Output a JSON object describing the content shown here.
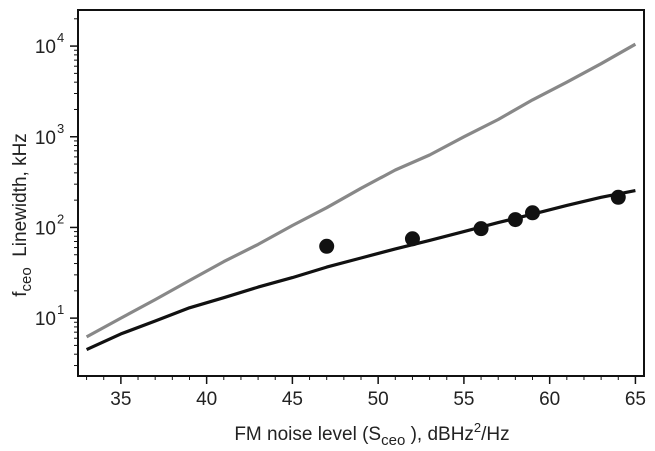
{
  "chart_data": {
    "type": "line",
    "title": "",
    "xlabel_parts": {
      "pre": "FM noise level (S",
      "sub": "ceo",
      "mid": " ), dBHz",
      "sup": "2",
      "post": "/Hz"
    },
    "ylabel_parts": {
      "base": "f",
      "sub": "ceo",
      "rest": "  Linewidth, kHz"
    },
    "xlim": [
      32.5,
      65.5
    ],
    "ylim": [
      2.3,
      25000
    ],
    "yscale": "log",
    "grid": false,
    "legend": "none",
    "x_ticks": [
      35,
      40,
      45,
      50,
      55,
      60,
      65
    ],
    "x_tick_labels": [
      "35",
      "40",
      "45",
      "50",
      "55",
      "60",
      "65"
    ],
    "y_ticks": [
      10,
      100,
      1000,
      10000
    ],
    "y_tick_labels": [
      {
        "base": "10",
        "exp": "1"
      },
      {
        "base": "10",
        "exp": "2"
      },
      {
        "base": "10",
        "exp": "3"
      },
      {
        "base": "10",
        "exp": "4"
      }
    ],
    "series": [
      {
        "kind": "line",
        "color": "#888888",
        "x": [
          33,
          35,
          37,
          39,
          41,
          43,
          45,
          47,
          49,
          51,
          53,
          55,
          57,
          59,
          61,
          63,
          65
        ],
        "y": [
          6.2,
          10,
          16,
          26,
          42,
          65,
          105,
          165,
          270,
          430,
          630,
          1000,
          1550,
          2550,
          4000,
          6400,
          10500
        ]
      },
      {
        "kind": "line",
        "color": "#111111",
        "x": [
          33,
          35,
          37,
          39,
          41,
          43,
          45,
          47,
          49,
          51,
          53,
          55,
          57,
          59,
          61,
          63,
          65
        ],
        "y": [
          4.5,
          6.7,
          9.3,
          13,
          16.8,
          22,
          28,
          36.5,
          46,
          58,
          72,
          90,
          113,
          140,
          175,
          215,
          255
        ]
      },
      {
        "kind": "scatter",
        "color": "#111111",
        "x": [
          47,
          52,
          56,
          58,
          59,
          64
        ],
        "y": [
          62,
          75,
          97,
          122,
          145,
          215
        ]
      }
    ]
  }
}
